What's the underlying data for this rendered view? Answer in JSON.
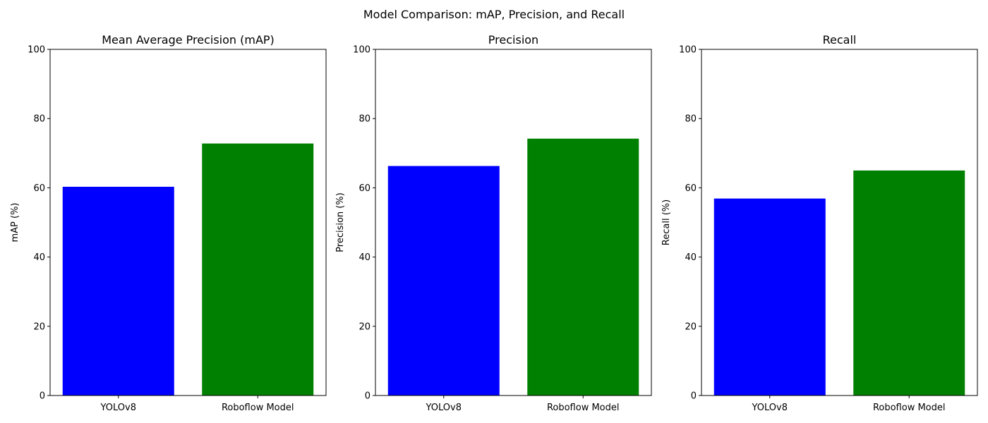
{
  "figure": {
    "suptitle": "Model Comparison: mAP, Precision, and Recall"
  },
  "chart_data": [
    {
      "type": "bar",
      "title": "Mean Average Precision (mAP)",
      "xlabel": "",
      "ylabel": "mAP (%)",
      "categories": [
        "YOLOv8",
        "Roboflow Model"
      ],
      "values": [
        60.3,
        72.8
      ],
      "colors": [
        "#0000ff",
        "#008000"
      ],
      "ylim": [
        0,
        100
      ],
      "yticks": [
        0,
        20,
        40,
        60,
        80,
        100
      ],
      "grid": false,
      "legend": "none"
    },
    {
      "type": "bar",
      "title": "Precision",
      "xlabel": "",
      "ylabel": "Precision (%)",
      "categories": [
        "YOLOv8",
        "Roboflow Model"
      ],
      "values": [
        66.3,
        74.2
      ],
      "colors": [
        "#0000ff",
        "#008000"
      ],
      "ylim": [
        0,
        100
      ],
      "yticks": [
        0,
        20,
        40,
        60,
        80,
        100
      ],
      "grid": false,
      "legend": "none"
    },
    {
      "type": "bar",
      "title": "Recall",
      "xlabel": "",
      "ylabel": "Recall (%)",
      "categories": [
        "YOLOv8",
        "Roboflow Model"
      ],
      "values": [
        56.9,
        65.0
      ],
      "colors": [
        "#0000ff",
        "#008000"
      ],
      "ylim": [
        0,
        100
      ],
      "yticks": [
        0,
        20,
        40,
        60,
        80,
        100
      ],
      "grid": false,
      "legend": "none"
    }
  ]
}
